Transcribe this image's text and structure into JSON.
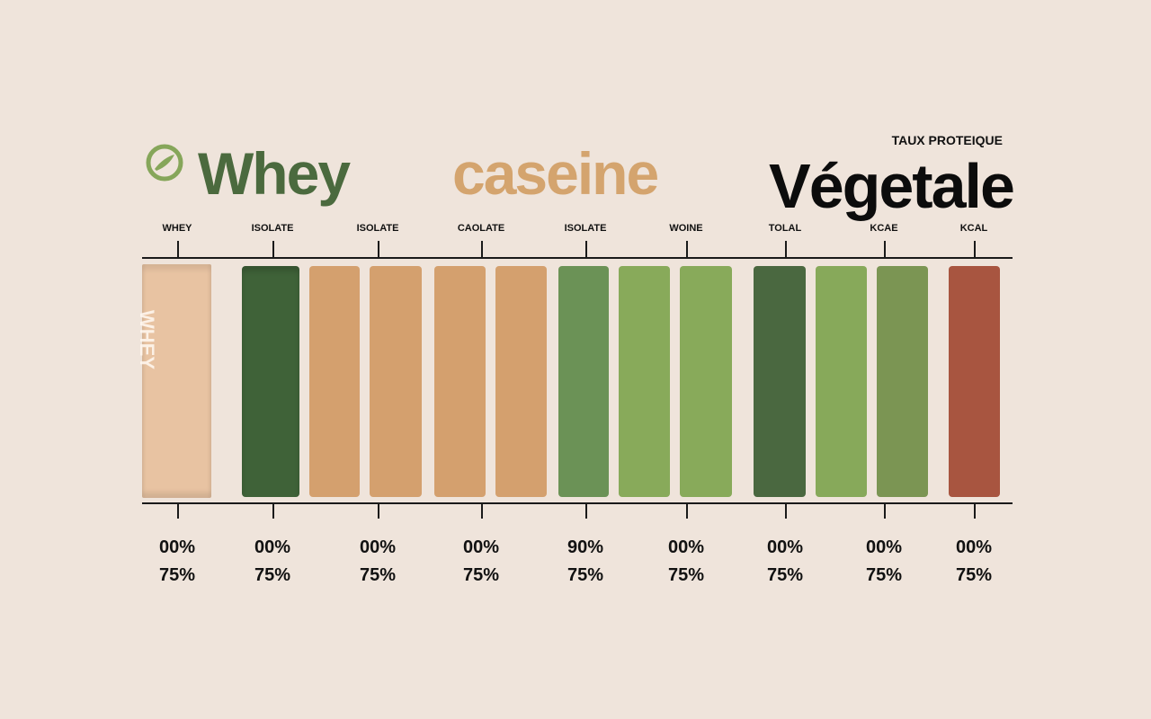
{
  "header": {
    "titles": [
      "Whey",
      "caseine",
      "Végetale"
    ],
    "subtitle": "TAUX PROTEIQUE",
    "logo_icon": "leaf-circle-icon"
  },
  "colors": {
    "whey": "#4b6a3e",
    "caseine": "#d4a46e",
    "vegetale": "#0c0c0c",
    "background": "#efe4db"
  },
  "chart_data": {
    "type": "bar",
    "title": "",
    "categories": [
      "WHEY",
      "ISOLATE",
      "ISOLATE",
      "CAOLATE",
      "ISOLATE",
      "WOINE",
      "TOLAL",
      "KCAE",
      "KCAL"
    ],
    "row1": [
      "00%",
      "00%",
      "00%",
      "00%",
      "90%",
      "00%",
      "00%",
      "00%",
      "00%"
    ],
    "row2": [
      "75%",
      "75%",
      "75%",
      "75%",
      "75%",
      "75%",
      "75%",
      "75%",
      "75%"
    ],
    "bars": [
      {
        "color": "#e8c3a2",
        "label": "WHEY"
      },
      {
        "color": "#3f6238"
      },
      {
        "color": "#d4a06e"
      },
      {
        "color": "#d4a06e"
      },
      {
        "color": "#d4a06e"
      },
      {
        "color": "#d4a06e"
      },
      {
        "color": "#6b9256"
      },
      {
        "color": "#88aa5a"
      },
      {
        "color": "#88aa5a"
      },
      {
        "color": "#4a6840"
      },
      {
        "color": "#87a95a"
      },
      {
        "color": "#7b9553"
      },
      {
        "color": "#a85540"
      }
    ],
    "grid": false
  }
}
